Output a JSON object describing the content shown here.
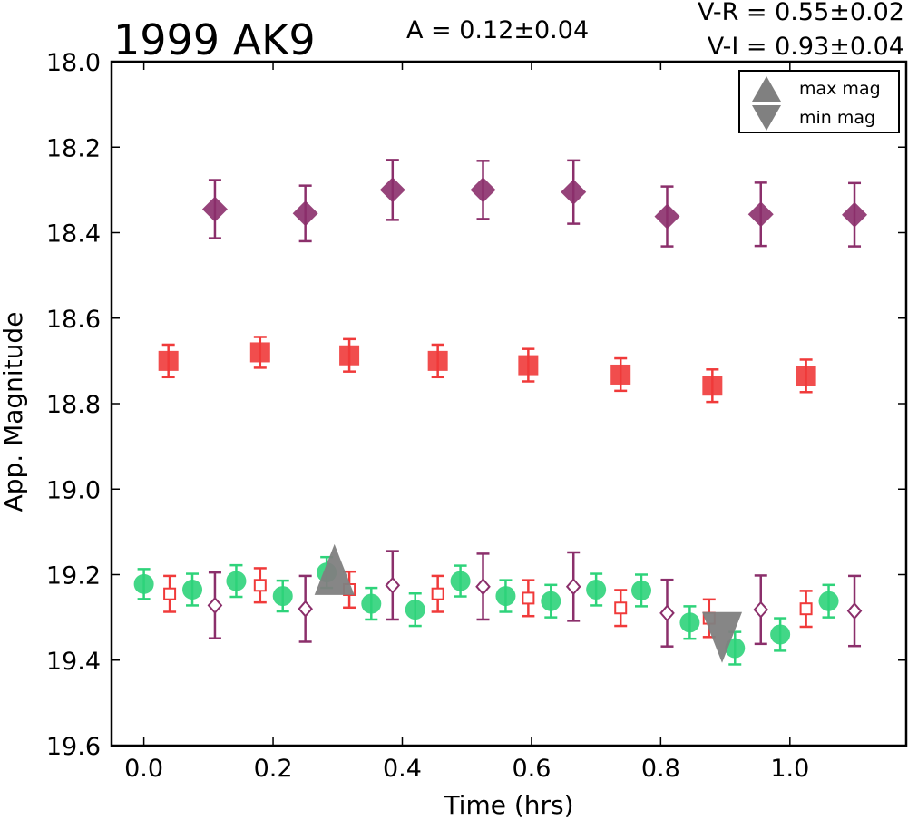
{
  "header": {
    "title": "1999 AK9",
    "amplitude": "A  = 0.12±0.04",
    "color_vr": "V-R = 0.55±0.02",
    "color_vi": "V-I  = 0.93±0.04"
  },
  "chart_data": {
    "type": "scatter",
    "xlabel": "Time (hrs)",
    "ylabel": "App. Magnitude",
    "xlim": [
      -0.05,
      1.18
    ],
    "ylim": [
      18.0,
      19.6
    ],
    "y_inverted": true,
    "x_ticks": [
      "0.0",
      "0.2",
      "0.4",
      "0.6",
      "0.8",
      "1.0"
    ],
    "x_tick_values": [
      0.0,
      0.2,
      0.4,
      0.6,
      0.8,
      1.0
    ],
    "y_ticks": [
      "18.0",
      "18.2",
      "18.4",
      "18.6",
      "18.8",
      "19.0",
      "19.2",
      "19.4",
      "19.6"
    ],
    "y_tick_values": [
      18.0,
      18.2,
      18.4,
      18.6,
      18.8,
      19.0,
      19.2,
      19.4,
      19.6
    ],
    "grid": false,
    "legend_position": "top-right",
    "legend": [
      {
        "label": "max mag",
        "marker": "triangle-up",
        "color": "#808080"
      },
      {
        "label": "min mag",
        "marker": "triangle-down",
        "color": "#808080"
      }
    ],
    "series": [
      {
        "marker": "diamond-filled",
        "color": "#8b2f6b",
        "x": [
          0.11,
          0.25,
          0.385,
          0.525,
          0.665,
          0.81,
          0.955,
          1.1
        ],
        "y": [
          18.345,
          18.355,
          18.3,
          18.3,
          18.305,
          18.362,
          18.357,
          18.358
        ],
        "err": [
          0.068,
          0.065,
          0.07,
          0.068,
          0.074,
          0.07,
          0.074,
          0.074
        ]
      },
      {
        "marker": "square-filled",
        "color": "#f03a3a",
        "x": [
          0.038,
          0.18,
          0.318,
          0.455,
          0.595,
          0.738,
          0.88,
          1.025
        ],
        "y": [
          18.7,
          18.68,
          18.687,
          18.7,
          18.71,
          18.732,
          18.758,
          18.735
        ],
        "err": [
          0.038,
          0.036,
          0.038,
          0.038,
          0.038,
          0.038,
          0.038,
          0.038
        ]
      },
      {
        "marker": "circle-filled",
        "color": "#2ed37a",
        "x": [
          0.0,
          0.075,
          0.143,
          0.215,
          0.283,
          0.352,
          0.42,
          0.49,
          0.56,
          0.63,
          0.7,
          0.77,
          0.845,
          0.915,
          0.985,
          1.06
        ],
        "y": [
          19.222,
          19.235,
          19.215,
          19.25,
          19.195,
          19.268,
          19.282,
          19.215,
          19.25,
          19.262,
          19.235,
          19.237,
          19.312,
          19.372,
          19.34,
          19.262
        ],
        "err": [
          0.035,
          0.037,
          0.037,
          0.036,
          0.036,
          0.037,
          0.038,
          0.036,
          0.037,
          0.038,
          0.037,
          0.037,
          0.038,
          0.038,
          0.038,
          0.038
        ]
      },
      {
        "marker": "square-open",
        "color": "#f03a3a",
        "x": [
          0.04,
          0.18,
          0.318,
          0.455,
          0.595,
          0.738,
          0.875,
          1.025
        ],
        "y": [
          19.245,
          19.225,
          19.235,
          19.245,
          19.255,
          19.278,
          19.302,
          19.28
        ],
        "err": [
          0.042,
          0.04,
          0.042,
          0.042,
          0.042,
          0.042,
          0.044,
          0.042
        ]
      },
      {
        "marker": "diamond-open",
        "color": "#8b2f6b",
        "x": [
          0.11,
          0.25,
          0.385,
          0.525,
          0.665,
          0.81,
          0.955,
          1.1
        ],
        "y": [
          19.272,
          19.28,
          19.225,
          19.228,
          19.228,
          19.29,
          19.282,
          19.285
        ],
        "err": [
          0.077,
          0.077,
          0.08,
          0.077,
          0.08,
          0.078,
          0.08,
          0.082
        ]
      },
      {
        "marker": "triangle-up",
        "color": "#808080",
        "x": [
          0.295
        ],
        "y": [
          19.205
        ],
        "err": []
      },
      {
        "marker": "triangle-down",
        "color": "#808080",
        "x": [
          0.895
        ],
        "y": [
          19.33
        ],
        "err": []
      }
    ]
  }
}
